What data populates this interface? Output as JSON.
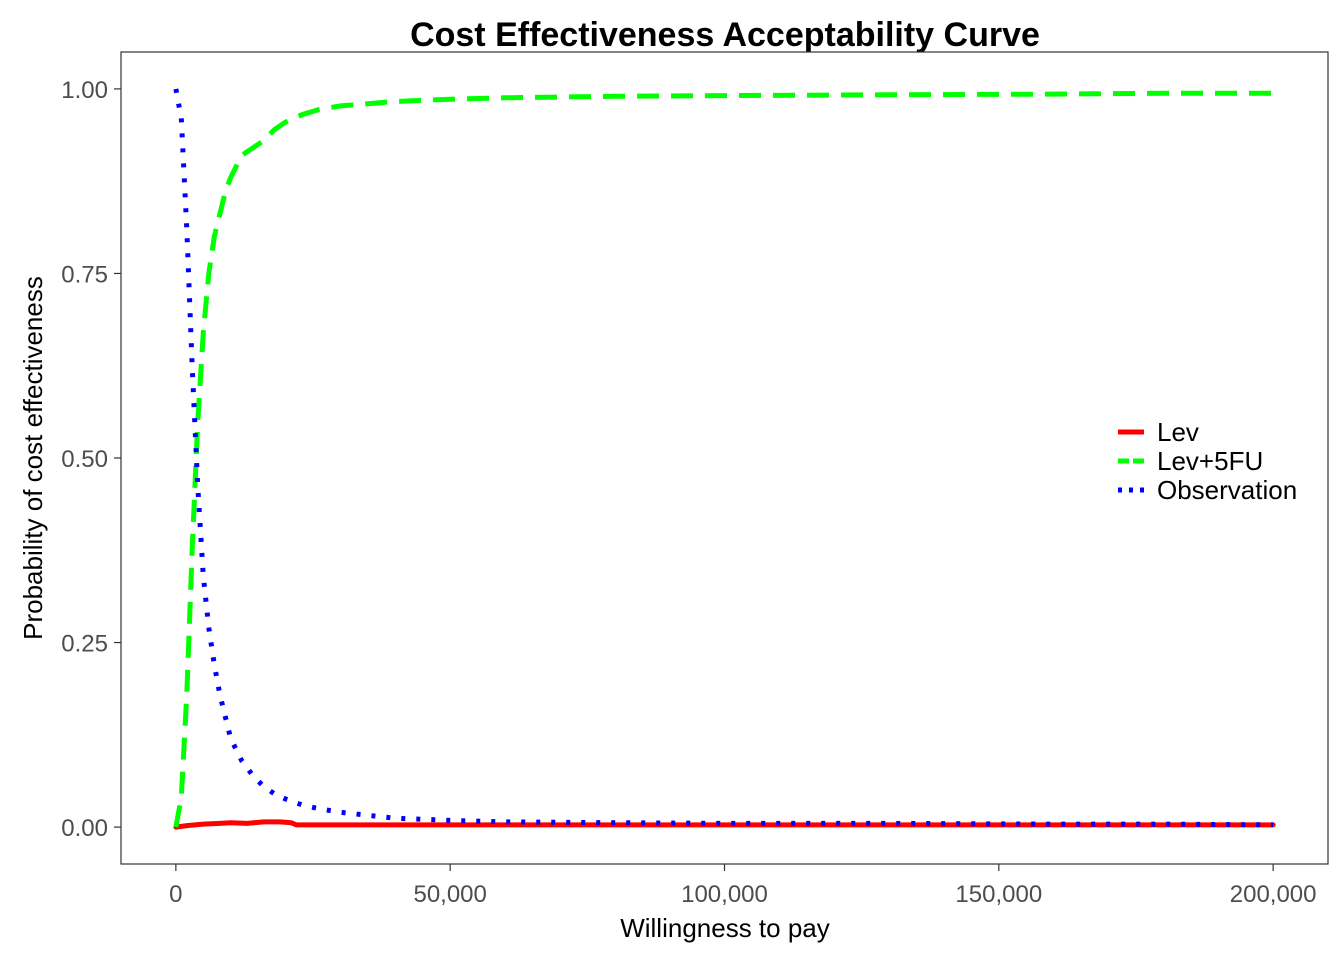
{
  "chart_data": {
    "type": "line",
    "title": "Cost Effectiveness Acceptability Curve",
    "xlabel": "Willingness to pay",
    "ylabel": "Probability of cost effectiveness",
    "xlim": [
      -10000,
      210000
    ],
    "ylim": [
      -0.05,
      1.05
    ],
    "x_ticks": [
      0,
      50000,
      100000,
      150000,
      200000
    ],
    "x_tick_labels": [
      "0",
      "50,000",
      "100,000",
      "150,000",
      "200,000"
    ],
    "y_ticks": [
      0,
      0.25,
      0.5,
      0.75,
      1.0
    ],
    "y_tick_labels": [
      "0.00",
      "0.25",
      "0.50",
      "0.75",
      "1.00"
    ],
    "grid": false,
    "legend_position": "right",
    "series": [
      {
        "name": "Lev",
        "color": "#ff0000",
        "dash": "solid",
        "x": [
          0,
          2000,
          5000,
          8000,
          10000,
          13000,
          16000,
          19000,
          21000,
          22000,
          30000,
          50000,
          100000,
          150000,
          200000
        ],
        "y": [
          0,
          0.002,
          0.004,
          0.005,
          0.006,
          0.005,
          0.007,
          0.007,
          0.006,
          0.003,
          0.003,
          0.003,
          0.003,
          0.003,
          0.003
        ]
      },
      {
        "name": "Lev+5FU",
        "color": "#00ff00",
        "dash": "dashed",
        "x": [
          0,
          1000,
          2000,
          3000,
          4000,
          5000,
          6000,
          7000,
          8000,
          9000,
          10000,
          12000,
          14000,
          16000,
          18000,
          20000,
          23000,
          26000,
          30000,
          35000,
          40000,
          50000,
          60000,
          80000,
          100000,
          130000,
          160000,
          180000,
          200000
        ],
        "y": [
          0,
          0.04,
          0.18,
          0.38,
          0.55,
          0.67,
          0.75,
          0.8,
          0.83,
          0.86,
          0.88,
          0.91,
          0.92,
          0.93,
          0.945,
          0.955,
          0.965,
          0.972,
          0.977,
          0.98,
          0.983,
          0.986,
          0.988,
          0.99,
          0.991,
          0.992,
          0.993,
          0.994,
          0.994
        ]
      },
      {
        "name": "Observation",
        "color": "#0000ff",
        "dash": "dotted",
        "x": [
          0,
          1000,
          2000,
          3000,
          4000,
          5000,
          6000,
          7000,
          8000,
          9000,
          10000,
          12000,
          14000,
          16000,
          18000,
          20000,
          23000,
          26000,
          30000,
          35000,
          40000,
          50000,
          60000,
          80000,
          100000,
          130000,
          160000,
          180000,
          200000
        ],
        "y": [
          1.0,
          0.96,
          0.81,
          0.62,
          0.46,
          0.34,
          0.27,
          0.22,
          0.18,
          0.15,
          0.12,
          0.09,
          0.07,
          0.055,
          0.045,
          0.038,
          0.03,
          0.025,
          0.02,
          0.016,
          0.012,
          0.009,
          0.007,
          0.006,
          0.005,
          0.005,
          0.004,
          0.004,
          0.003
        ]
      }
    ]
  }
}
